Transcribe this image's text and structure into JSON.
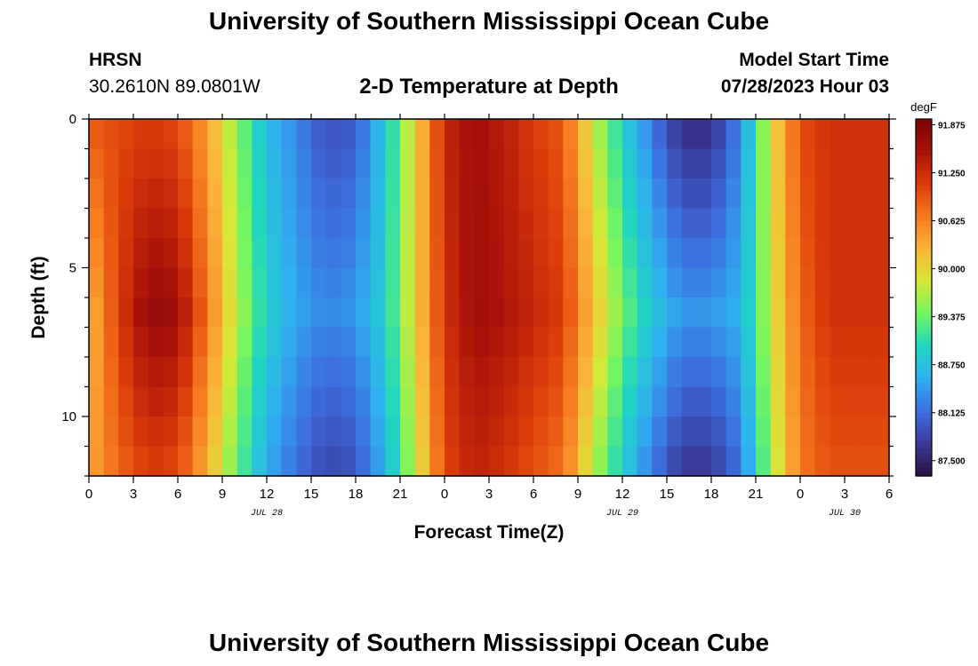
{
  "header": {
    "title": "University of Southern Mississippi Ocean Cube",
    "station": "HRSN",
    "coordinates": "30.2610N  89.0801W",
    "subtitle": "2-D Temperature at Depth",
    "model_start_label": "Model Start Time",
    "model_start_value": "07/28/2023 Hour 03"
  },
  "footer": {
    "title": "University of Southern Mississippi Ocean Cube"
  },
  "chart_data": {
    "type": "heatmap",
    "title": "2-D Temperature at Depth",
    "xlabel": "Forecast Time(Z)",
    "ylabel": "Depth (ft)",
    "x_range_hours": [
      0,
      54
    ],
    "y_range_ft": [
      0,
      12
    ],
    "x_tick_labels": [
      "0",
      "3",
      "6",
      "9",
      "12",
      "15",
      "18",
      "21",
      "0",
      "3",
      "6",
      "9",
      "12",
      "15",
      "18",
      "21",
      "0",
      "3",
      "6"
    ],
    "x_tick_hours": [
      0,
      3,
      6,
      9,
      12,
      15,
      18,
      21,
      24,
      27,
      30,
      33,
      36,
      39,
      42,
      45,
      48,
      51,
      54
    ],
    "y_tick_labels": [
      "0",
      "5",
      "10"
    ],
    "y_tick_values": [
      0,
      5,
      10
    ],
    "date_labels": [
      {
        "text": "JUL 28",
        "hour": 12
      },
      {
        "text": "JUL 29",
        "hour": 36
      },
      {
        "text": "JUL 30",
        "hour": 51
      }
    ],
    "colorbar": {
      "units": "degF",
      "min": 87.3,
      "max": 91.95,
      "tick_labels": [
        "91.875",
        "91.250",
        "90.625",
        "90.000",
        "89.375",
        "88.750",
        "88.125",
        "87.500"
      ],
      "tick_values": [
        91.875,
        91.25,
        90.625,
        90.0,
        89.375,
        88.75,
        88.125,
        87.5
      ],
      "colors": [
        "#2b0f3f",
        "#3a3a9a",
        "#3d6fe0",
        "#2fb0f0",
        "#1fd6c0",
        "#72f560",
        "#d6e836",
        "#fbb43a",
        "#f67a1e",
        "#db3b0a",
        "#a8120a",
        "#7a0403"
      ]
    },
    "time_hours": [
      0,
      2,
      4,
      6,
      8,
      10,
      12,
      14,
      16,
      18,
      20,
      22,
      24,
      26,
      28,
      30,
      32,
      34,
      36,
      38,
      40,
      42,
      44,
      46,
      48,
      50,
      52,
      54
    ],
    "surface_temp_degF": [
      90.9,
      91.0,
      91.1,
      91.0,
      90.4,
      89.5,
      88.7,
      88.3,
      87.9,
      88.0,
      88.8,
      90.0,
      91.3,
      91.6,
      91.4,
      91.1,
      90.9,
      89.8,
      88.9,
      88.2,
      87.6,
      87.6,
      88.3,
      89.9,
      91.0,
      91.2,
      91.2,
      91.2
    ],
    "deep_temp_degF": [
      90.2,
      91.1,
      91.7,
      91.6,
      90.7,
      89.7,
      88.9,
      88.5,
      88.3,
      88.4,
      88.9,
      90.0,
      91.2,
      91.6,
      91.5,
      91.3,
      91.1,
      90.2,
      89.4,
      88.8,
      88.4,
      88.4,
      88.6,
      89.8,
      90.8,
      91.2,
      91.2,
      91.2
    ],
    "deep_peak_depth_ft": 6.5
  }
}
